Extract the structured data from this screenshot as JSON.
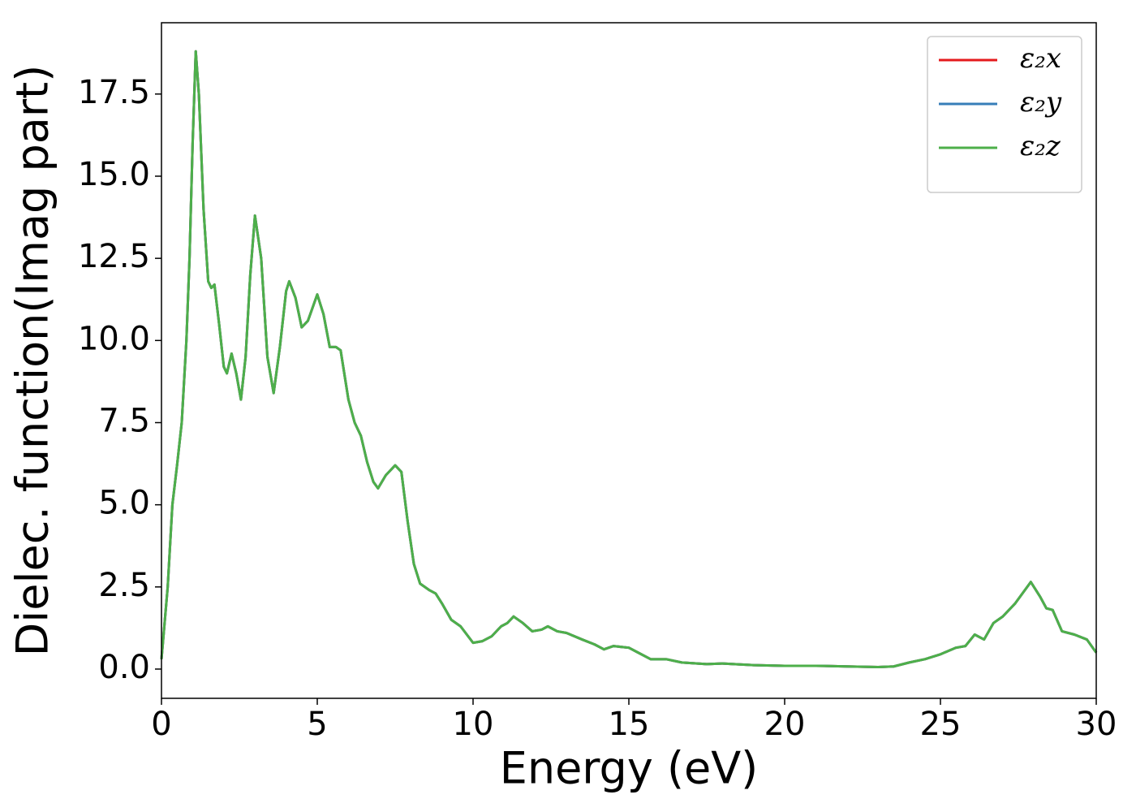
{
  "chart_data": {
    "type": "line",
    "xlabel": "Energy (eV)",
    "ylabel": "Dielec. function(Imag part)",
    "xlim": [
      0,
      30
    ],
    "ylim": [
      -0.89,
      19.67
    ],
    "xticks": [
      0,
      5,
      10,
      15,
      20,
      25,
      30
    ],
    "yticks": [
      {
        "value": 0,
        "label": "0.0"
      },
      2.5,
      {
        "value": 5,
        "label": "5.0"
      },
      7.5,
      {
        "value": 10,
        "label": "10.0"
      },
      12.5,
      {
        "value": 15,
        "label": "15.0"
      },
      17.5
    ],
    "grid": false,
    "legend": "upper right",
    "x": [
      0,
      0.2,
      0.35,
      0.5,
      0.65,
      0.8,
      0.9,
      1.0,
      1.1,
      1.2,
      1.35,
      1.5,
      1.6,
      1.7,
      1.85,
      2.0,
      2.1,
      2.25,
      2.4,
      2.55,
      2.7,
      2.85,
      3.0,
      3.2,
      3.4,
      3.6,
      3.8,
      4.0,
      4.1,
      4.3,
      4.5,
      4.7,
      5.0,
      5.2,
      5.4,
      5.6,
      5.75,
      6.0,
      6.2,
      6.4,
      6.6,
      6.8,
      6.95,
      7.2,
      7.5,
      7.7,
      7.9,
      8.1,
      8.3,
      8.6,
      8.8,
      9.0,
      9.3,
      9.6,
      10.0,
      10.3,
      10.6,
      10.9,
      11.1,
      11.3,
      11.6,
      11.9,
      12.2,
      12.4,
      12.7,
      13.0,
      13.5,
      13.9,
      14.2,
      14.5,
      15.0,
      15.3,
      15.7,
      16.2,
      16.7,
      17.5,
      18.0,
      19.0,
      20.0,
      21.0,
      22.0,
      23.0,
      23.5,
      24.0,
      24.5,
      25.0,
      25.5,
      25.8,
      26.1,
      26.4,
      26.7,
      27.0,
      27.4,
      27.9,
      28.2,
      28.4,
      28.6,
      28.9,
      29.3,
      29.7,
      30.0
    ],
    "series": [
      {
        "name": "ε₂x",
        "color": "#e41a1c",
        "values": [
          0.3,
          2.5,
          5.0,
          6.2,
          7.5,
          10,
          12.5,
          16,
          18.8,
          17.5,
          14,
          11.8,
          11.6,
          11.7,
          10.5,
          9.2,
          9.0,
          9.6,
          9.0,
          8.2,
          9.5,
          12,
          13.8,
          12.5,
          9.5,
          8.4,
          9.8,
          11.5,
          11.8,
          11.3,
          10.4,
          10.6,
          11.4,
          10.8,
          9.8,
          9.8,
          9.7,
          8.2,
          7.5,
          7.1,
          6.3,
          5.7,
          5.5,
          5.9,
          6.2,
          6.0,
          4.5,
          3.2,
          2.6,
          2.4,
          2.3,
          2.0,
          1.5,
          1.3,
          0.8,
          0.85,
          1.0,
          1.3,
          1.4,
          1.6,
          1.4,
          1.15,
          1.2,
          1.3,
          1.15,
          1.1,
          0.9,
          0.75,
          0.6,
          0.7,
          0.65,
          0.5,
          0.3,
          0.3,
          0.2,
          0.15,
          0.17,
          0.12,
          0.1,
          0.1,
          0.08,
          0.06,
          0.08,
          0.2,
          0.3,
          0.45,
          0.65,
          0.7,
          1.05,
          0.9,
          1.4,
          1.6,
          2.0,
          2.65,
          2.2,
          1.85,
          1.8,
          1.15,
          1.05,
          0.9,
          0.5
        ]
      },
      {
        "name": "ε₂y",
        "color": "#377eb8",
        "values": [
          0.3,
          2.5,
          5.0,
          6.2,
          7.5,
          10,
          12.5,
          16,
          18.8,
          17.5,
          14,
          11.8,
          11.6,
          11.7,
          10.5,
          9.2,
          9.0,
          9.6,
          9.0,
          8.2,
          9.5,
          12,
          13.8,
          12.5,
          9.5,
          8.4,
          9.8,
          11.5,
          11.8,
          11.3,
          10.4,
          10.6,
          11.4,
          10.8,
          9.8,
          9.8,
          9.7,
          8.2,
          7.5,
          7.1,
          6.3,
          5.7,
          5.5,
          5.9,
          6.2,
          6.0,
          4.5,
          3.2,
          2.6,
          2.4,
          2.3,
          2.0,
          1.5,
          1.3,
          0.8,
          0.85,
          1.0,
          1.3,
          1.4,
          1.6,
          1.4,
          1.15,
          1.2,
          1.3,
          1.15,
          1.1,
          0.9,
          0.75,
          0.6,
          0.7,
          0.65,
          0.5,
          0.3,
          0.3,
          0.2,
          0.15,
          0.17,
          0.12,
          0.1,
          0.1,
          0.08,
          0.06,
          0.08,
          0.2,
          0.3,
          0.45,
          0.65,
          0.7,
          1.05,
          0.9,
          1.4,
          1.6,
          2.0,
          2.65,
          2.2,
          1.85,
          1.8,
          1.15,
          1.05,
          0.9,
          0.5
        ]
      },
      {
        "name": "ε₂z",
        "color": "#4daf4a",
        "values": [
          0.3,
          2.5,
          5.0,
          6.2,
          7.5,
          10,
          12.5,
          16,
          18.8,
          17.5,
          14,
          11.8,
          11.6,
          11.7,
          10.5,
          9.2,
          9.0,
          9.6,
          9.0,
          8.2,
          9.5,
          12,
          13.8,
          12.5,
          9.5,
          8.4,
          9.8,
          11.5,
          11.8,
          11.3,
          10.4,
          10.6,
          11.4,
          10.8,
          9.8,
          9.8,
          9.7,
          8.2,
          7.5,
          7.1,
          6.3,
          5.7,
          5.5,
          5.9,
          6.2,
          6.0,
          4.5,
          3.2,
          2.6,
          2.4,
          2.3,
          2.0,
          1.5,
          1.3,
          0.8,
          0.85,
          1.0,
          1.3,
          1.4,
          1.6,
          1.4,
          1.15,
          1.2,
          1.3,
          1.15,
          1.1,
          0.9,
          0.75,
          0.6,
          0.7,
          0.65,
          0.5,
          0.3,
          0.3,
          0.2,
          0.15,
          0.17,
          0.12,
          0.1,
          0.1,
          0.08,
          0.06,
          0.08,
          0.2,
          0.3,
          0.45,
          0.65,
          0.7,
          1.05,
          0.9,
          1.4,
          1.6,
          2.0,
          2.65,
          2.2,
          1.85,
          1.8,
          1.15,
          1.05,
          0.9,
          0.5
        ]
      }
    ]
  }
}
